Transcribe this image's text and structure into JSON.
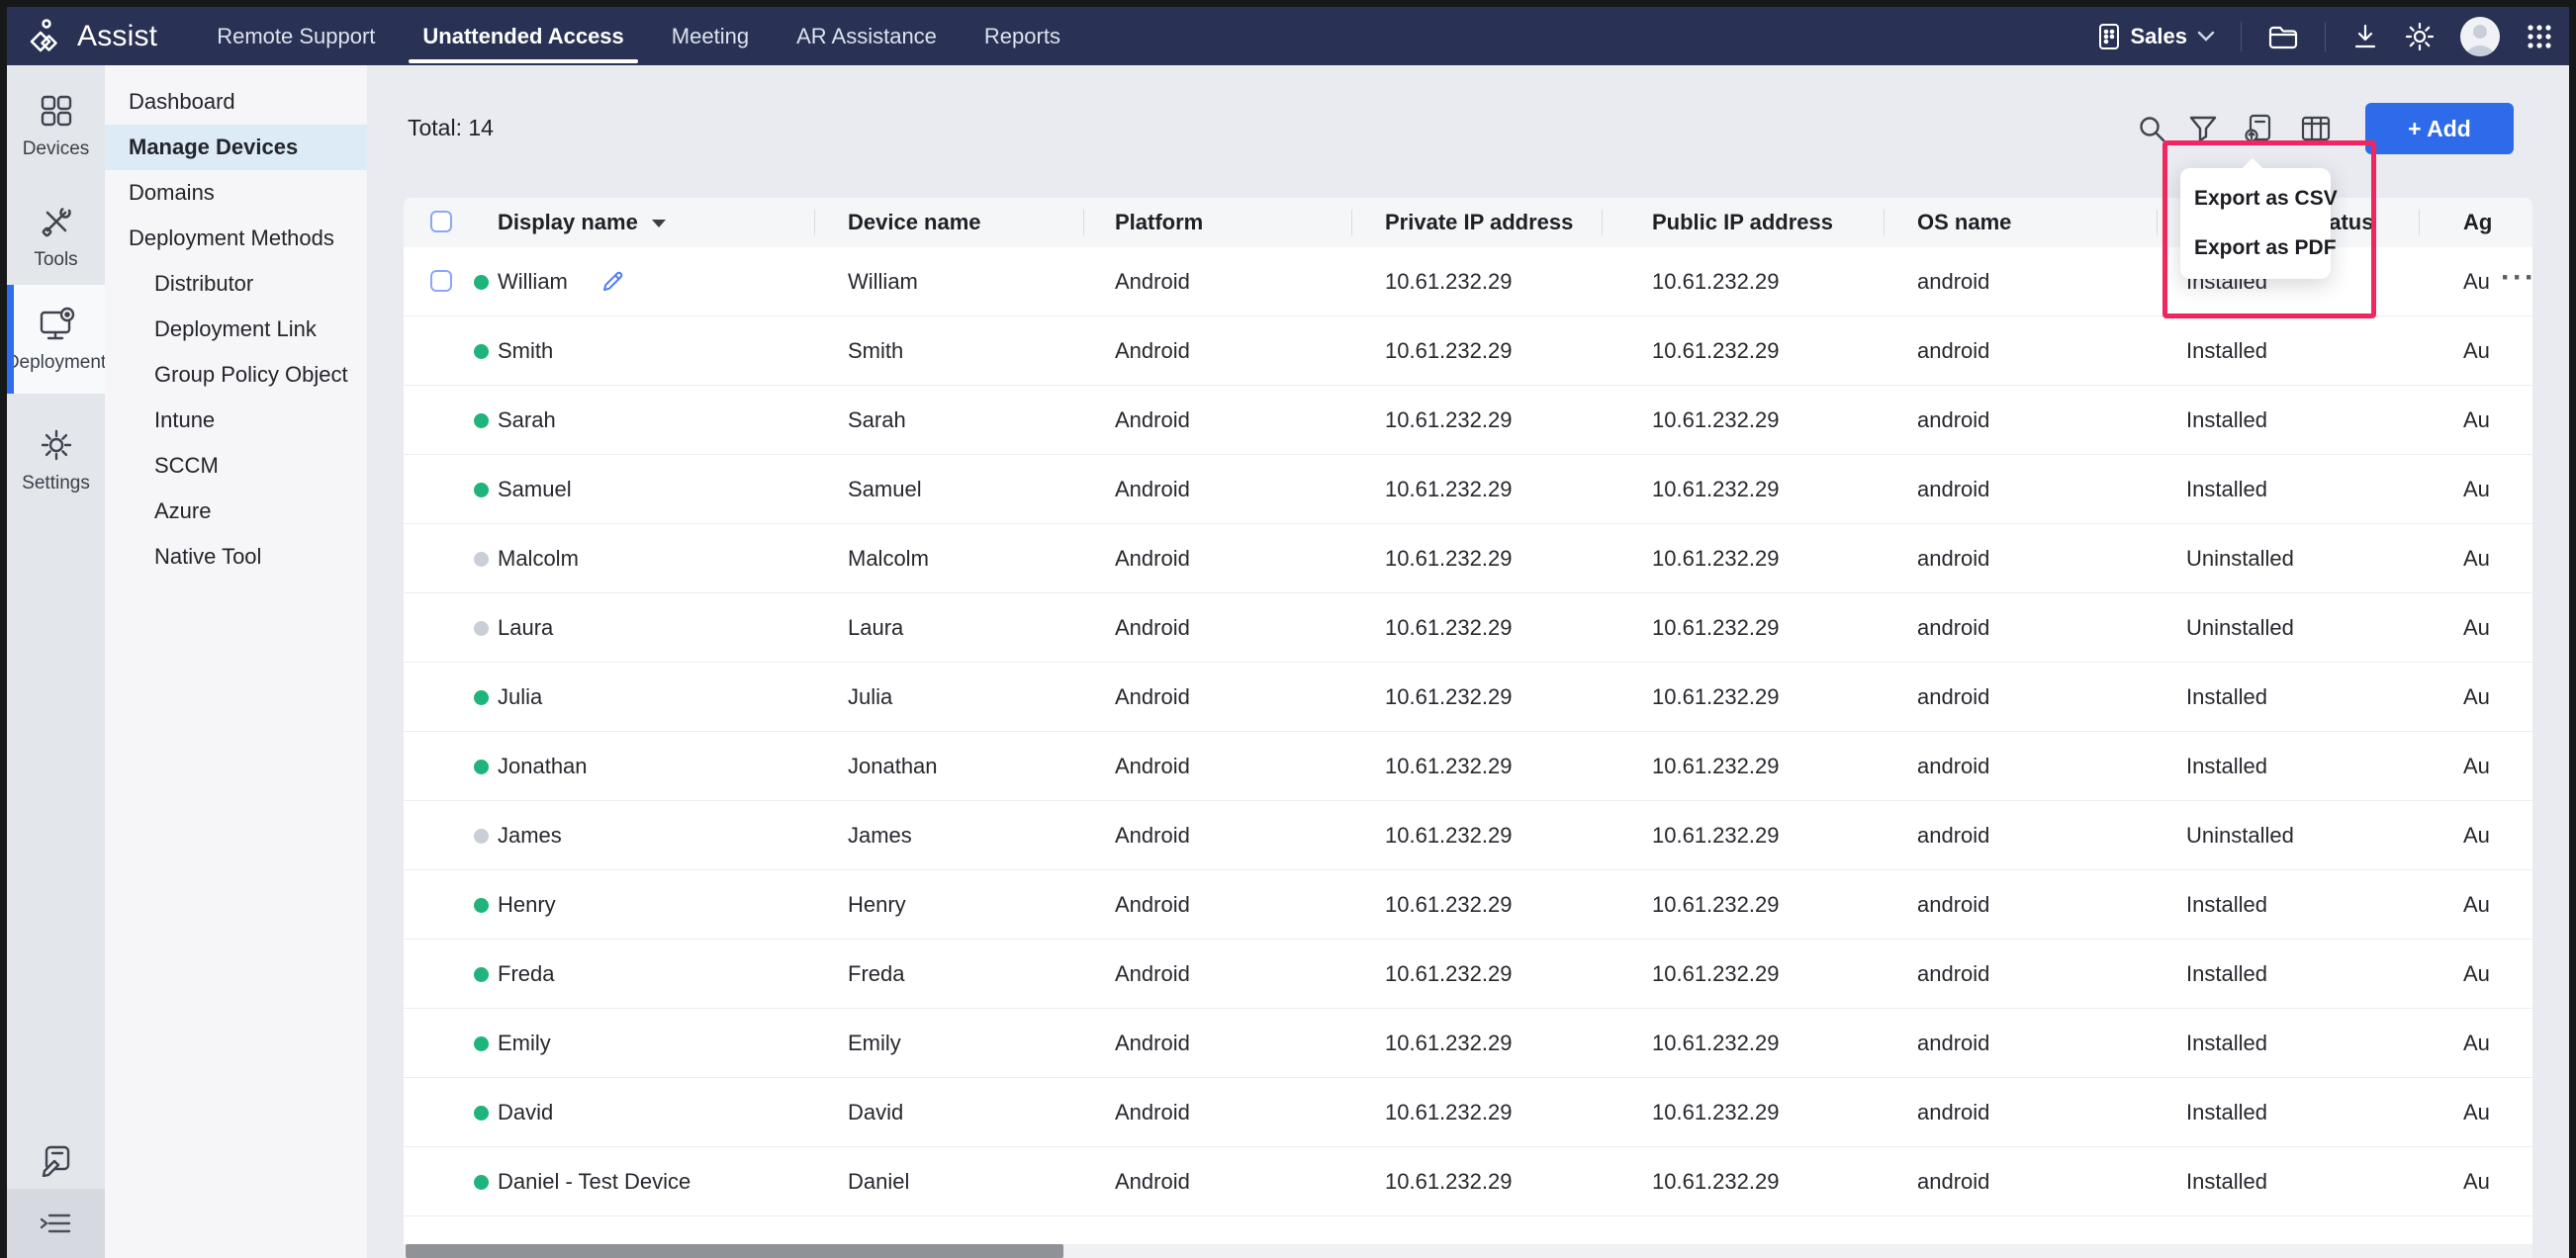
{
  "navbar": {
    "brand": "Assist",
    "tabs": [
      {
        "label": "Remote Support",
        "active": false
      },
      {
        "label": "Unattended Access",
        "active": true
      },
      {
        "label": "Meeting",
        "active": false
      },
      {
        "label": "AR Assistance",
        "active": false
      },
      {
        "label": "Reports",
        "active": false
      }
    ],
    "org_label": "Sales"
  },
  "rail": {
    "items": [
      {
        "label": "Devices",
        "active": false
      },
      {
        "label": "Tools",
        "active": false
      },
      {
        "label": "Deployment",
        "active": true
      },
      {
        "label": "Settings",
        "active": false
      }
    ]
  },
  "sidebar": {
    "items": [
      {
        "label": "Dashboard",
        "level": 1,
        "active": false
      },
      {
        "label": "Manage Devices",
        "level": 1,
        "active": true
      },
      {
        "label": "Domains",
        "level": 1,
        "active": false
      },
      {
        "label": "Deployment Methods",
        "level": 1,
        "active": false
      },
      {
        "label": "Distributor",
        "level": 2,
        "active": false
      },
      {
        "label": "Deployment Link",
        "level": 2,
        "active": false
      },
      {
        "label": "Group Policy Object",
        "level": 2,
        "active": false
      },
      {
        "label": "Intune",
        "level": 2,
        "active": false
      },
      {
        "label": "SCCM",
        "level": 2,
        "active": false
      },
      {
        "label": "Azure",
        "level": 2,
        "active": false
      },
      {
        "label": "Native Tool",
        "level": 2,
        "active": false
      }
    ]
  },
  "toolbar": {
    "total_label": "Total: 14",
    "add_label": "+ Add"
  },
  "export_menu": {
    "items": [
      "Export as CSV",
      "Export as PDF"
    ]
  },
  "table": {
    "columns": [
      "Display name",
      "Device name",
      "Platform",
      "Private IP address",
      "Public IP address",
      "OS name",
      "Installation Status",
      "Ag"
    ],
    "actions_ellipsis": "···",
    "rows": [
      {
        "display": "William",
        "device": "William",
        "platform": "Android",
        "private_ip": "10.61.232.29",
        "public_ip": "10.61.232.29",
        "os": "android",
        "status": "Installed",
        "agent": "Au",
        "online": true,
        "hover": true
      },
      {
        "display": "Smith",
        "device": "Smith",
        "platform": "Android",
        "private_ip": "10.61.232.29",
        "public_ip": "10.61.232.29",
        "os": "android",
        "status": "Installed",
        "agent": "Au",
        "online": true,
        "hover": false
      },
      {
        "display": "Sarah",
        "device": "Sarah",
        "platform": "Android",
        "private_ip": "10.61.232.29",
        "public_ip": "10.61.232.29",
        "os": "android",
        "status": "Installed",
        "agent": "Au",
        "online": true,
        "hover": false
      },
      {
        "display": "Samuel",
        "device": "Samuel",
        "platform": "Android",
        "private_ip": "10.61.232.29",
        "public_ip": "10.61.232.29",
        "os": "android",
        "status": "Installed",
        "agent": "Au",
        "online": true,
        "hover": false
      },
      {
        "display": "Malcolm",
        "device": "Malcolm",
        "platform": "Android",
        "private_ip": "10.61.232.29",
        "public_ip": "10.61.232.29",
        "os": "android",
        "status": "Uninstalled",
        "agent": "Au",
        "online": false,
        "hover": false
      },
      {
        "display": "Laura",
        "device": "Laura",
        "platform": "Android",
        "private_ip": "10.61.232.29",
        "public_ip": "10.61.232.29",
        "os": "android",
        "status": "Uninstalled",
        "agent": "Au",
        "online": false,
        "hover": false
      },
      {
        "display": "Julia",
        "device": "Julia",
        "platform": "Android",
        "private_ip": "10.61.232.29",
        "public_ip": "10.61.232.29",
        "os": "android",
        "status": "Installed",
        "agent": "Au",
        "online": true,
        "hover": false
      },
      {
        "display": "Jonathan",
        "device": "Jonathan",
        "platform": "Android",
        "private_ip": "10.61.232.29",
        "public_ip": "10.61.232.29",
        "os": "android",
        "status": "Installed",
        "agent": "Au",
        "online": true,
        "hover": false
      },
      {
        "display": "James",
        "device": "James",
        "platform": "Android",
        "private_ip": "10.61.232.29",
        "public_ip": "10.61.232.29",
        "os": "android",
        "status": "Uninstalled",
        "agent": "Au",
        "online": false,
        "hover": false
      },
      {
        "display": "Henry",
        "device": "Henry",
        "platform": "Android",
        "private_ip": "10.61.232.29",
        "public_ip": "10.61.232.29",
        "os": "android",
        "status": "Installed",
        "agent": "Au",
        "online": true,
        "hover": false
      },
      {
        "display": "Freda",
        "device": "Freda",
        "platform": "Android",
        "private_ip": "10.61.232.29",
        "public_ip": "10.61.232.29",
        "os": "android",
        "status": "Installed",
        "agent": "Au",
        "online": true,
        "hover": false
      },
      {
        "display": "Emily",
        "device": "Emily",
        "platform": "Android",
        "private_ip": "10.61.232.29",
        "public_ip": "10.61.232.29",
        "os": "android",
        "status": "Installed",
        "agent": "Au",
        "online": true,
        "hover": false
      },
      {
        "display": "David",
        "device": "David",
        "platform": "Android",
        "private_ip": "10.61.232.29",
        "public_ip": "10.61.232.29",
        "os": "android",
        "status": "Installed",
        "agent": "Au",
        "online": true,
        "hover": false
      },
      {
        "display": "Daniel - Test Device",
        "device": "Daniel",
        "platform": "Android",
        "private_ip": "10.61.232.29",
        "public_ip": "10.61.232.29",
        "os": "android",
        "status": "Installed",
        "agent": "Au",
        "online": true,
        "hover": false
      }
    ]
  },
  "colors": {
    "navbar": "#293254",
    "accent_blue": "#2e6beb",
    "annotation_red": "#f2265e",
    "online_green": "#1eb47c",
    "offline_gray": "#c9ced7",
    "sidebar_active": "#dcebf5"
  }
}
